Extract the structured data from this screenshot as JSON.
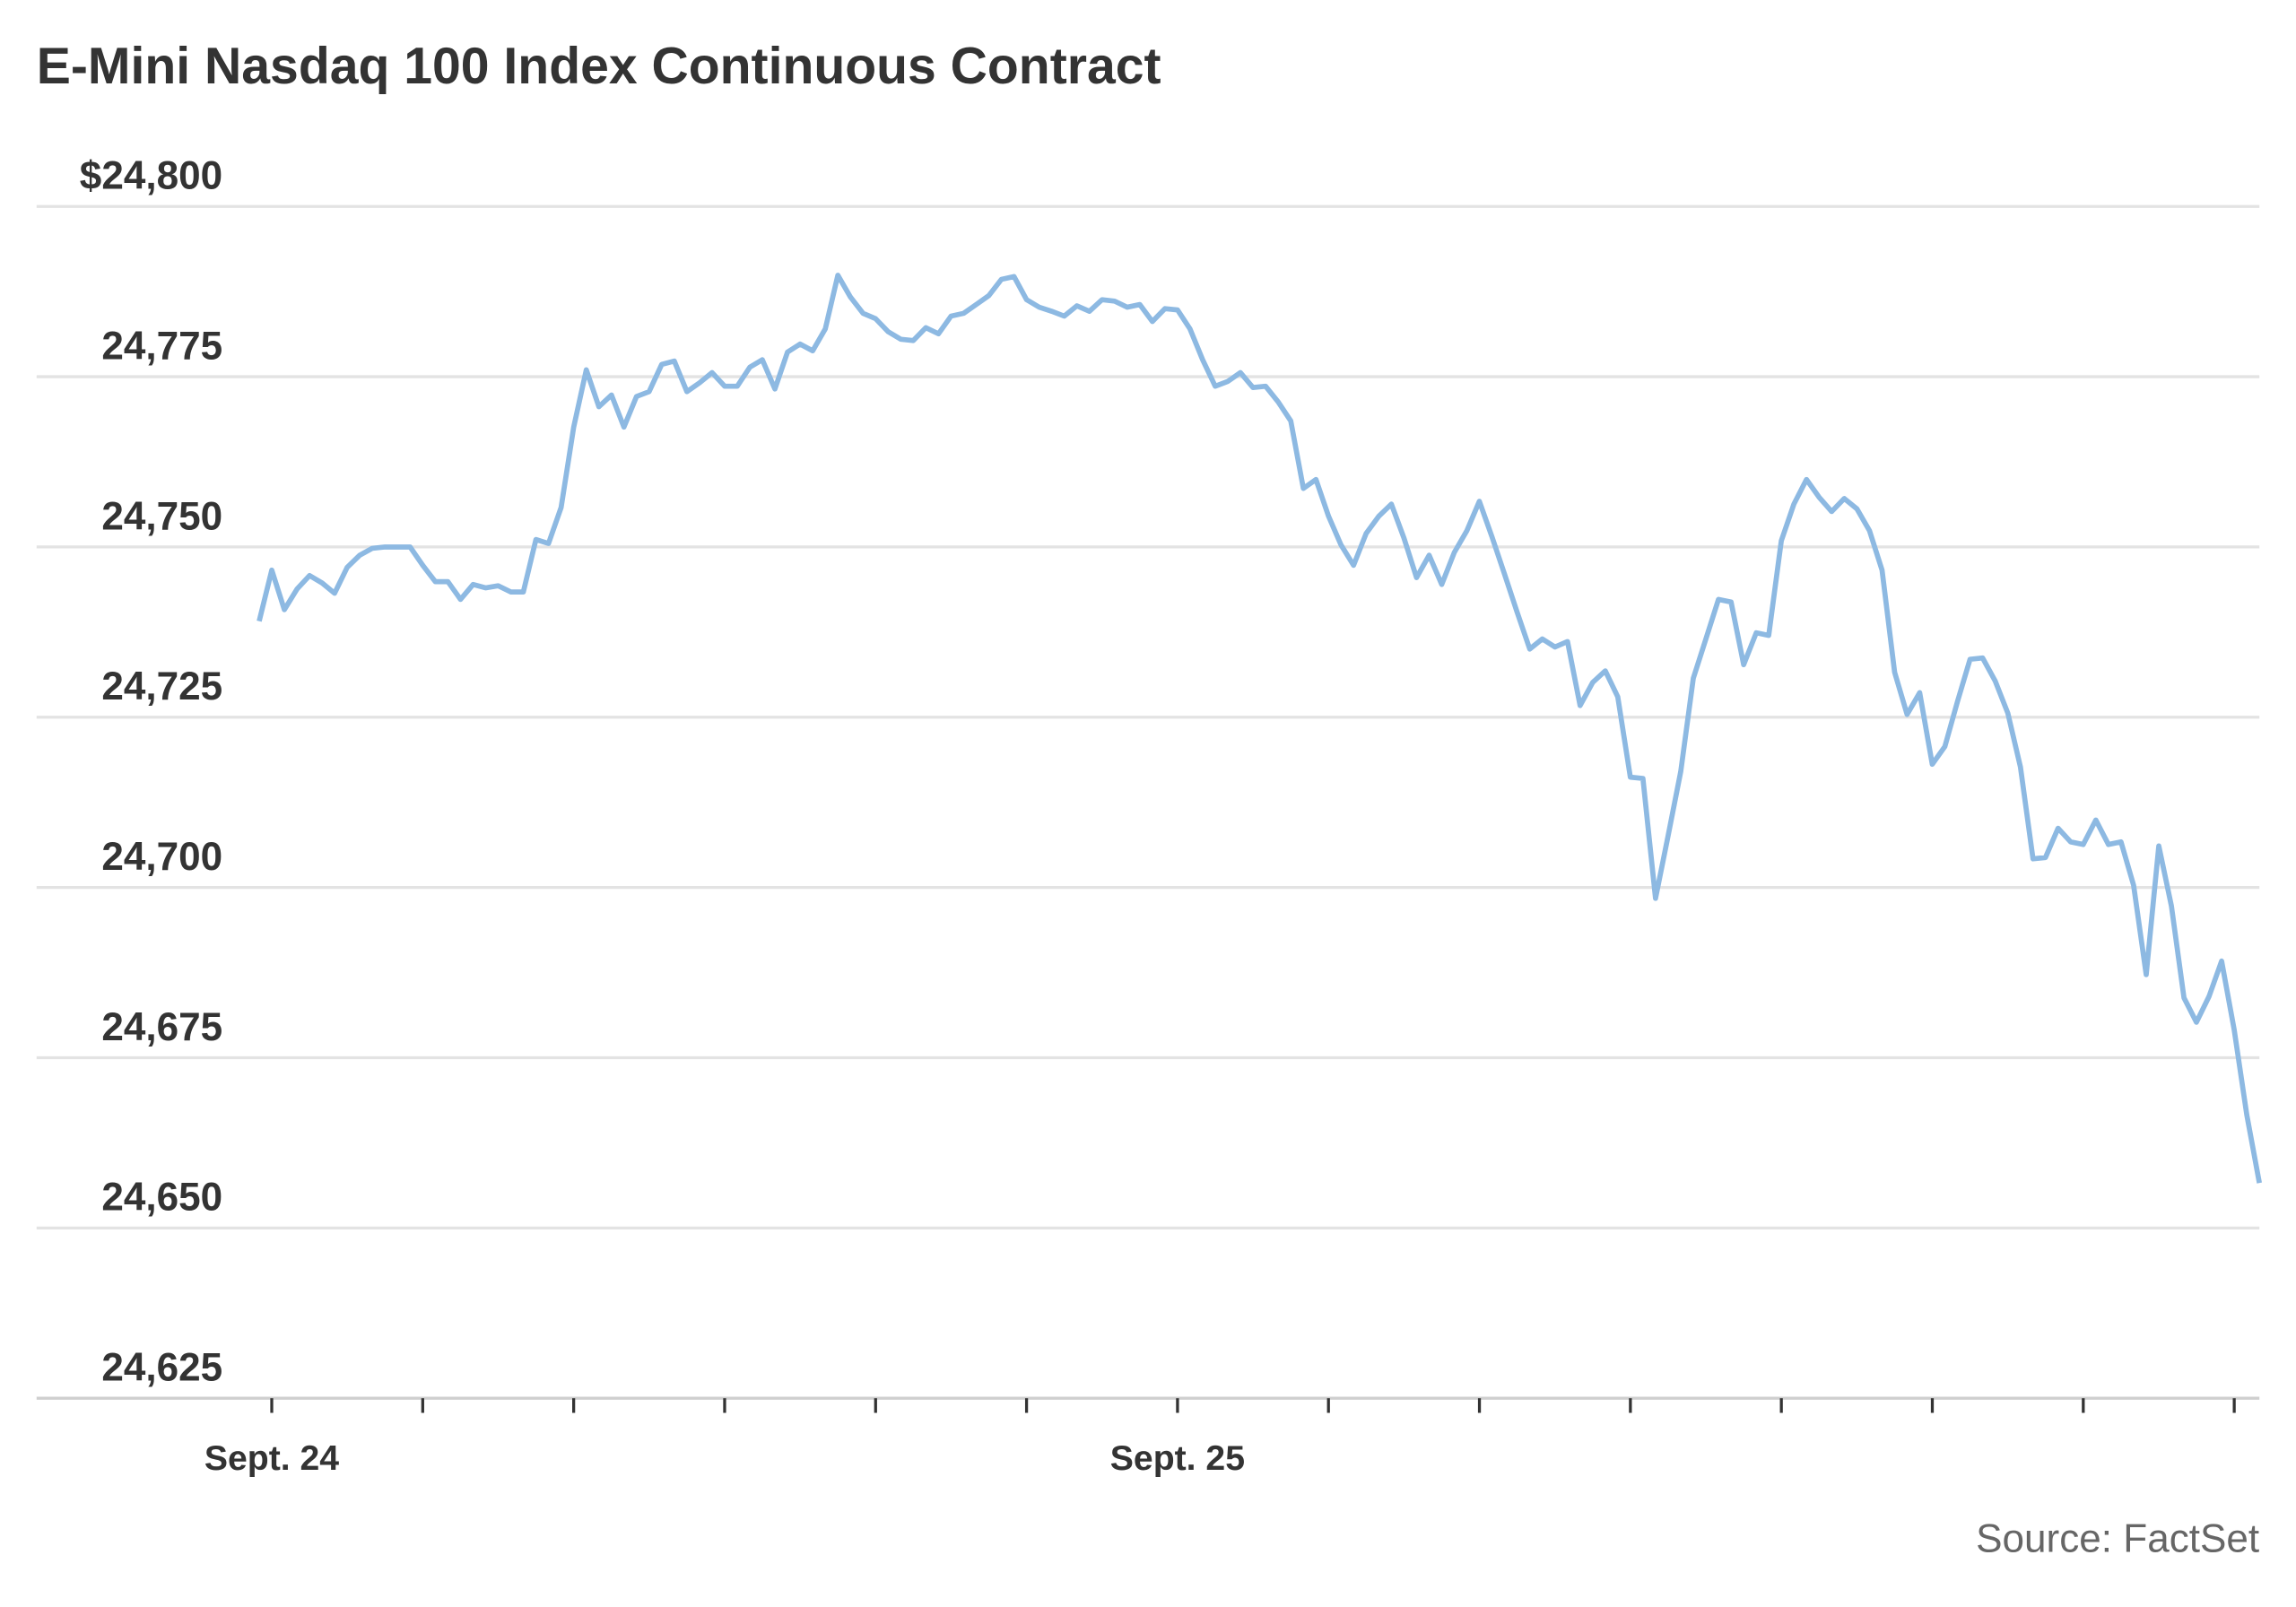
{
  "chart_data": {
    "type": "line",
    "title": "E-Mini Nasdaq 100 Index Continuous Contract",
    "source": "Source: FactSet",
    "xlabel": "",
    "ylabel": "",
    "ylim": [
      24625,
      24800
    ],
    "y_ticks": [
      {
        "value": 24800,
        "label": "$24,800"
      },
      {
        "value": 24775,
        "label": "24,775"
      },
      {
        "value": 24750,
        "label": "24,750"
      },
      {
        "value": 24725,
        "label": "24,725"
      },
      {
        "value": 24700,
        "label": "24,700"
      },
      {
        "value": 24675,
        "label": "24,675"
      },
      {
        "value": 24650,
        "label": "24,650"
      },
      {
        "value": 24625,
        "label": "24,625"
      }
    ],
    "xlim": [
      "Sept. 23 23:40",
      "Sept. 26 04:40"
    ],
    "x_ticks": [
      {
        "time": "Sept. 24 00:00",
        "label": "Sept. 24"
      },
      {
        "time": "Sept. 24 04:00",
        "label": ""
      },
      {
        "time": "Sept. 24 08:00",
        "label": ""
      },
      {
        "time": "Sept. 24 12:00",
        "label": ""
      },
      {
        "time": "Sept. 24 16:00",
        "label": ""
      },
      {
        "time": "Sept. 24 20:00",
        "label": ""
      },
      {
        "time": "Sept. 25 00:00",
        "label": "Sept. 25"
      },
      {
        "time": "Sept. 25 04:00",
        "label": ""
      },
      {
        "time": "Sept. 25 08:00",
        "label": ""
      },
      {
        "time": "Sept. 25 12:00",
        "label": ""
      },
      {
        "time": "Sept. 25 16:00",
        "label": ""
      },
      {
        "time": "Sept. 25 20:00",
        "label": ""
      },
      {
        "time": "Sept. 26 00:00",
        "label": ""
      },
      {
        "time": "Sept. 26 04:00",
        "label": ""
      }
    ],
    "grid": true,
    "legend": "none",
    "colors": {
      "line": "#8DB9E2",
      "grid": "#e3e3e3",
      "text": "#333333"
    },
    "series": [
      {
        "points": [
          [
            "Sept. 23 23:40",
            24739.1
          ],
          [
            "Sept. 24 00:00",
            24746.6
          ],
          [
            "Sept. 24 00:20",
            24740.8
          ],
          [
            "Sept. 24 00:40",
            24743.8
          ],
          [
            "Sept. 24 01:00",
            24745.8
          ],
          [
            "Sept. 24 01:20",
            24744.7
          ],
          [
            "Sept. 24 01:40",
            24743.2
          ],
          [
            "Sept. 24 02:00",
            24747.0
          ],
          [
            "Sept. 24 02:20",
            24748.8
          ],
          [
            "Sept. 24 02:40",
            24749.8
          ],
          [
            "Sept. 24 03:00",
            24750.0
          ],
          [
            "Sept. 24 03:20",
            24750.0
          ],
          [
            "Sept. 24 03:40",
            24750.0
          ],
          [
            "Sept. 24 04:00",
            24747.3
          ],
          [
            "Sept. 24 04:20",
            24744.9
          ],
          [
            "Sept. 24 04:40",
            24744.9
          ],
          [
            "Sept. 24 05:00",
            24742.3
          ],
          [
            "Sept. 24 05:20",
            24744.5
          ],
          [
            "Sept. 24 05:40",
            24744.0
          ],
          [
            "Sept. 24 06:00",
            24744.3
          ],
          [
            "Sept. 24 06:20",
            24743.4
          ],
          [
            "Sept. 24 06:40",
            24743.4
          ],
          [
            "Sept. 24 07:00",
            24751.1
          ],
          [
            "Sept. 24 07:20",
            24750.5
          ],
          [
            "Sept. 24 07:40",
            24755.8
          ],
          [
            "Sept. 24 08:00",
            24767.6
          ],
          [
            "Sept. 24 08:20",
            24776.0
          ],
          [
            "Sept. 24 08:40",
            24770.6
          ],
          [
            "Sept. 24 09:00",
            24772.3
          ],
          [
            "Sept. 24 09:20",
            24767.6
          ],
          [
            "Sept. 24 09:40",
            24772.1
          ],
          [
            "Sept. 24 10:00",
            24772.8
          ],
          [
            "Sept. 24 10:20",
            24776.8
          ],
          [
            "Sept. 24 10:40",
            24777.3
          ],
          [
            "Sept. 24 11:00",
            24772.8
          ],
          [
            "Sept. 24 11:20",
            24774.1
          ],
          [
            "Sept. 24 11:40",
            24775.6
          ],
          [
            "Sept. 24 12:00",
            24773.6
          ],
          [
            "Sept. 24 12:20",
            24773.6
          ],
          [
            "Sept. 24 12:40",
            24776.4
          ],
          [
            "Sept. 24 13:00",
            24777.5
          ],
          [
            "Sept. 24 13:20",
            24773.2
          ],
          [
            "Sept. 24 13:40",
            24778.6
          ],
          [
            "Sept. 24 14:00",
            24779.8
          ],
          [
            "Sept. 24 14:20",
            24778.8
          ],
          [
            "Sept. 24 14:40",
            24782.0
          ],
          [
            "Sept. 24 15:00",
            24789.9
          ],
          [
            "Sept. 24 15:20",
            24786.7
          ],
          [
            "Sept. 24 15:40",
            24784.3
          ],
          [
            "Sept. 24 16:00",
            24783.5
          ],
          [
            "Sept. 24 16:20",
            24781.6
          ],
          [
            "Sept. 24 16:40",
            24780.5
          ],
          [
            "Sept. 24 17:00",
            24780.3
          ],
          [
            "Sept. 24 17:20",
            24782.2
          ],
          [
            "Sept. 24 17:40",
            24781.3
          ],
          [
            "Sept. 24 18:00",
            24783.9
          ],
          [
            "Sept. 24 18:20",
            24784.3
          ],
          [
            "Sept. 24 18:40",
            24785.6
          ],
          [
            "Sept. 24 19:00",
            24786.9
          ],
          [
            "Sept. 24 19:20",
            24789.3
          ],
          [
            "Sept. 24 19:40",
            24789.7
          ],
          [
            "Sept. 24 20:00",
            24786.3
          ],
          [
            "Sept. 24 20:20",
            24785.2
          ],
          [
            "Sept. 24 20:40",
            24784.6
          ],
          [
            "Sept. 24 21:00",
            24783.9
          ],
          [
            "Sept. 24 21:20",
            24785.4
          ],
          [
            "Sept. 24 21:40",
            24784.6
          ],
          [
            "Sept. 24 22:00",
            24786.3
          ],
          [
            "Sept. 24 22:20",
            24786.1
          ],
          [
            "Sept. 24 22:40",
            24785.2
          ],
          [
            "Sept. 24 23:00",
            24785.6
          ],
          [
            "Sept. 24 23:20",
            24783.1
          ],
          [
            "Sept. 24 23:40",
            24785.0
          ],
          [
            "Sept. 25 00:00",
            24784.8
          ],
          [
            "Sept. 25 00:20",
            24782.0
          ],
          [
            "Sept. 25 00:40",
            24777.5
          ],
          [
            "Sept. 25 01:00",
            24773.6
          ],
          [
            "Sept. 25 01:20",
            24774.3
          ],
          [
            "Sept. 25 01:40",
            24775.6
          ],
          [
            "Sept. 25 02:00",
            24773.4
          ],
          [
            "Sept. 25 02:20",
            24773.6
          ],
          [
            "Sept. 25 02:40",
            24771.3
          ],
          [
            "Sept. 25 03:00",
            24768.5
          ],
          [
            "Sept. 25 03:20",
            24758.6
          ],
          [
            "Sept. 25 03:40",
            24759.9
          ],
          [
            "Sept. 25 04:00",
            24754.5
          ],
          [
            "Sept. 25 04:20",
            24750.3
          ],
          [
            "Sept. 25 04:40",
            24747.3
          ],
          [
            "Sept. 25 05:00",
            24752.0
          ],
          [
            "Sept. 25 05:20",
            24754.5
          ],
          [
            "Sept. 25 05:40",
            24756.3
          ],
          [
            "Sept. 25 06:00",
            24751.3
          ],
          [
            "Sept. 25 06:20",
            24745.5
          ],
          [
            "Sept. 25 06:40",
            24748.8
          ],
          [
            "Sept. 25 07:00",
            24744.5
          ],
          [
            "Sept. 25 07:20",
            24749.2
          ],
          [
            "Sept. 25 07:40",
            24752.4
          ],
          [
            "Sept. 25 08:00",
            24756.7
          ],
          [
            "Sept. 25 08:20",
            24751.5
          ],
          [
            "Sept. 25 08:40",
            24746.0
          ],
          [
            "Sept. 25 09:00",
            24740.4
          ],
          [
            "Sept. 25 09:20",
            24735.0
          ],
          [
            "Sept. 25 09:40",
            24736.5
          ],
          [
            "Sept. 25 10:00",
            24735.3
          ],
          [
            "Sept. 25 10:20",
            24736.1
          ],
          [
            "Sept. 25 10:40",
            24726.7
          ],
          [
            "Sept. 25 11:00",
            24730.1
          ],
          [
            "Sept. 25 11:20",
            24731.8
          ],
          [
            "Sept. 25 11:40",
            24728.0
          ],
          [
            "Sept. 25 12:00",
            24716.2
          ],
          [
            "Sept. 25 12:20",
            24716.0
          ],
          [
            "Sept. 25 12:40",
            24698.4
          ],
          [
            "Sept. 25 13:00",
            24707.6
          ],
          [
            "Sept. 25 13:20",
            24717.0
          ],
          [
            "Sept. 25 13:40",
            24730.7
          ],
          [
            "Sept. 25 14:00",
            24736.5
          ],
          [
            "Sept. 25 14:20",
            24742.3
          ],
          [
            "Sept. 25 14:40",
            24741.9
          ],
          [
            "Sept. 25 15:00",
            24732.7
          ],
          [
            "Sept. 25 15:20",
            24737.4
          ],
          [
            "Sept. 25 15:40",
            24737.0
          ],
          [
            "Sept. 25 16:00",
            24750.9
          ],
          [
            "Sept. 25 16:20",
            24756.3
          ],
          [
            "Sept. 25 16:40",
            24759.9
          ],
          [
            "Sept. 25 17:00",
            24757.3
          ],
          [
            "Sept. 25 17:20",
            24755.2
          ],
          [
            "Sept. 25 17:40",
            24757.1
          ],
          [
            "Sept. 25 18:00",
            24755.6
          ],
          [
            "Sept. 25 18:20",
            24752.4
          ],
          [
            "Sept. 25 18:40",
            24746.6
          ],
          [
            "Sept. 25 19:00",
            24731.6
          ],
          [
            "Sept. 25 19:20",
            24725.4
          ],
          [
            "Sept. 25 19:40",
            24728.6
          ],
          [
            "Sept. 25 20:00",
            24718.1
          ],
          [
            "Sept. 25 20:20",
            24720.7
          ],
          [
            "Sept. 25 20:40",
            24727.3
          ],
          [
            "Sept. 25 21:00",
            24733.5
          ],
          [
            "Sept. 25 21:20",
            24733.7
          ],
          [
            "Sept. 25 21:40",
            24730.3
          ],
          [
            "Sept. 25 22:00",
            24725.6
          ],
          [
            "Sept. 25 22:20",
            24717.7
          ],
          [
            "Sept. 25 22:40",
            24704.2
          ],
          [
            "Sept. 25 23:00",
            24704.4
          ],
          [
            "Sept. 25 23:20",
            24708.7
          ],
          [
            "Sept. 25 23:40",
            24706.7
          ],
          [
            "Sept. 26 00:00",
            24706.3
          ],
          [
            "Sept. 26 00:20",
            24709.9
          ],
          [
            "Sept. 26 00:40",
            24706.3
          ],
          [
            "Sept. 26 01:00",
            24706.7
          ],
          [
            "Sept. 26 01:20",
            24700.3
          ],
          [
            "Sept. 26 01:40",
            24687.2
          ],
          [
            "Sept. 26 02:00",
            24706.1
          ],
          [
            "Sept. 26 02:20",
            24697.3
          ],
          [
            "Sept. 26 02:40",
            24683.8
          ],
          [
            "Sept. 26 03:00",
            24680.2
          ],
          [
            "Sept. 26 03:20",
            24684.0
          ],
          [
            "Sept. 26 03:40",
            24689.2
          ],
          [
            "Sept. 26 04:00",
            24679.1
          ],
          [
            "Sept. 26 04:20",
            24666.6
          ],
          [
            "Sept. 26 04:40",
            24656.6
          ]
        ]
      }
    ]
  }
}
